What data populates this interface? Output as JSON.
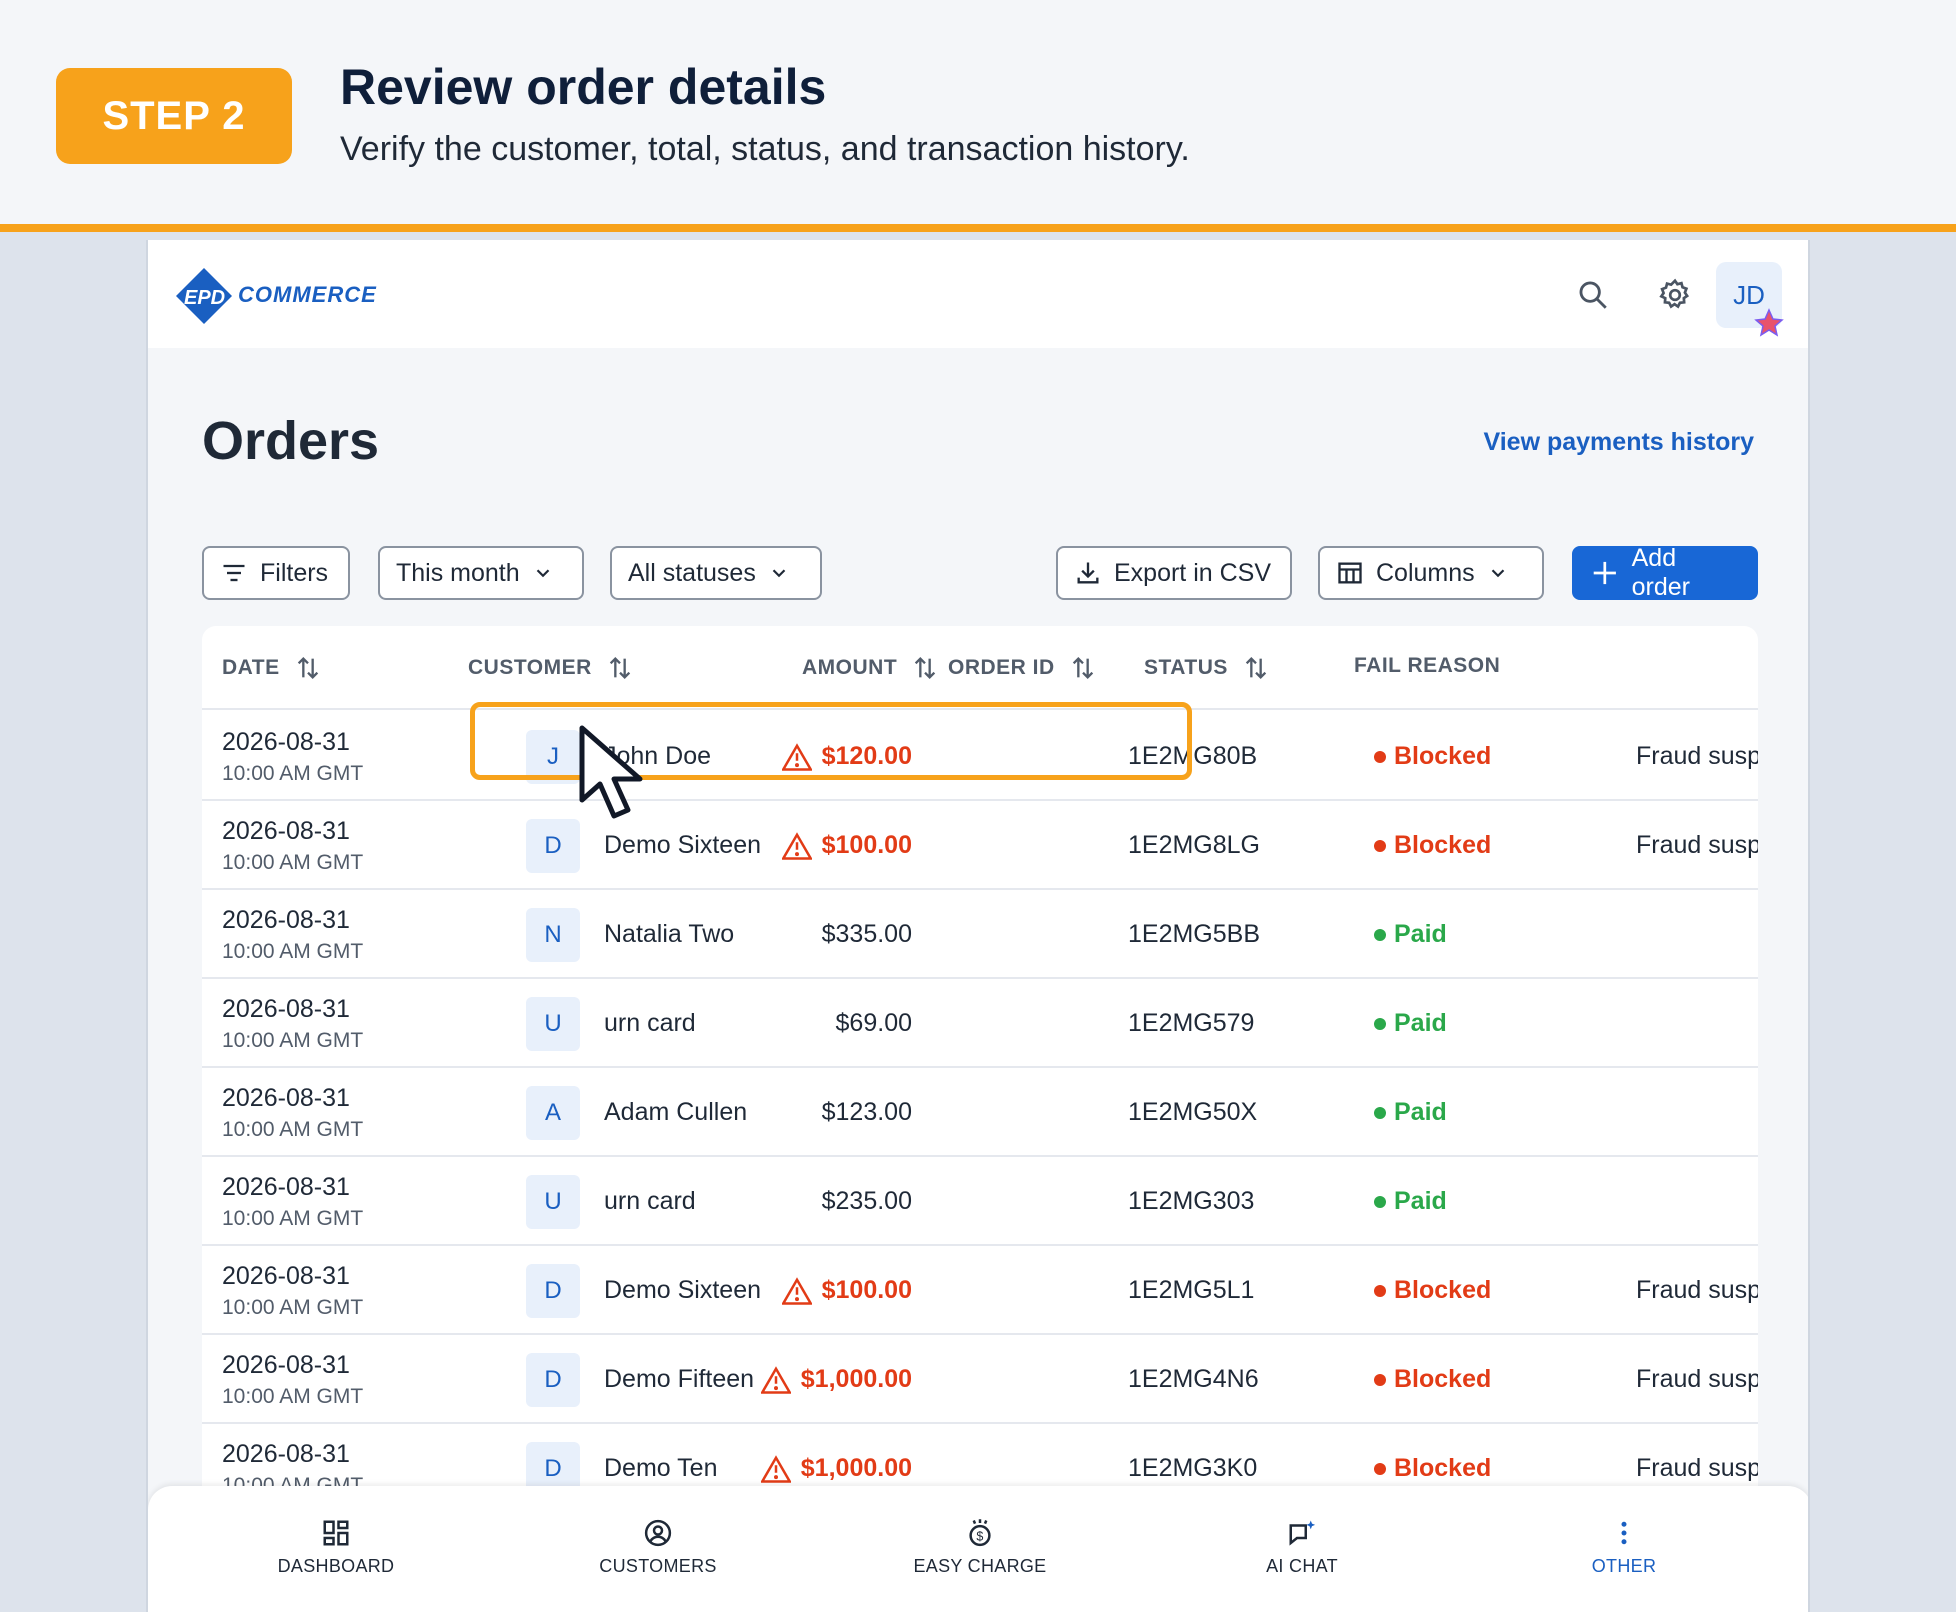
{
  "banner": {
    "step": "STEP 2",
    "title": "Review order details",
    "subtitle": "Verify the customer, total, status, and transaction history."
  },
  "header": {
    "logo_text": "COMMERCE",
    "logo_badge": "EPD",
    "avatar": "JD",
    "icons": [
      "search-icon",
      "gear-icon"
    ]
  },
  "page": {
    "title": "Orders",
    "payments_link": "View payments history"
  },
  "toolbar": {
    "filters": "Filters",
    "period": "This month",
    "statuses": "All statuses",
    "export": "Export in CSV",
    "columns": "Columns",
    "add": "Add order"
  },
  "table": {
    "headers": [
      "DATE",
      "CUSTOMER",
      "AMOUNT",
      "ORDER ID",
      "STATUS",
      "FAIL REASON"
    ],
    "rows": [
      {
        "date": "2026-08-31",
        "time": "10:00 AM GMT",
        "initial": "J",
        "customer": "John Doe",
        "amount": "$120.00",
        "warn": true,
        "order_id": "1E2MG80B",
        "status": "Blocked",
        "reason": "Fraud susp"
      },
      {
        "date": "2026-08-31",
        "time": "10:00 AM GMT",
        "initial": "D",
        "customer": "Demo Sixteen",
        "amount": "$100.00",
        "warn": true,
        "order_id": "1E2MG8LG",
        "status": "Blocked",
        "reason": "Fraud susp"
      },
      {
        "date": "2026-08-31",
        "time": "10:00 AM GMT",
        "initial": "N",
        "customer": "Natalia Two",
        "amount": "$335.00",
        "warn": false,
        "order_id": "1E2MG5BB",
        "status": "Paid",
        "reason": ""
      },
      {
        "date": "2026-08-31",
        "time": "10:00 AM GMT",
        "initial": "U",
        "customer": "urn card",
        "amount": "$69.00",
        "warn": false,
        "order_id": "1E2MG579",
        "status": "Paid",
        "reason": ""
      },
      {
        "date": "2026-08-31",
        "time": "10:00 AM GMT",
        "initial": "A",
        "customer": "Adam Cullen",
        "amount": "$123.00",
        "warn": false,
        "order_id": "1E2MG50X",
        "status": "Paid",
        "reason": ""
      },
      {
        "date": "2026-08-31",
        "time": "10:00 AM GMT",
        "initial": "U",
        "customer": "urn card",
        "amount": "$235.00",
        "warn": false,
        "order_id": "1E2MG303",
        "status": "Paid",
        "reason": ""
      },
      {
        "date": "2026-08-31",
        "time": "10:00 AM GMT",
        "initial": "D",
        "customer": "Demo Sixteen",
        "amount": "$100.00",
        "warn": true,
        "order_id": "1E2MG5L1",
        "status": "Blocked",
        "reason": "Fraud susp"
      },
      {
        "date": "2026-08-31",
        "time": "10:00 AM GMT",
        "initial": "D",
        "customer": "Demo Fifteen",
        "amount": "$1,000.00",
        "warn": true,
        "order_id": "1E2MG4N6",
        "status": "Blocked",
        "reason": "Fraud susp"
      },
      {
        "date": "2026-08-31",
        "time": "10:00 AM GMT",
        "initial": "D",
        "customer": "Demo Ten",
        "amount": "$1,000.00",
        "warn": true,
        "order_id": "1E2MG3K0",
        "status": "Blocked",
        "reason": "Fraud susp"
      }
    ]
  },
  "nav": {
    "items": [
      {
        "label": "DASHBOARD",
        "icon": "dashboard-icon",
        "active": false
      },
      {
        "label": "CUSTOMERS",
        "icon": "user-circle-icon",
        "active": false
      },
      {
        "label": "EASY CHARGE",
        "icon": "dollar-tap-icon",
        "active": false
      },
      {
        "label": "AI CHAT",
        "icon": "chat-sparkle-icon",
        "active": false
      },
      {
        "label": "OTHER",
        "icon": "more-vertical-icon",
        "active": true
      }
    ]
  },
  "colors": {
    "accent": "#f7a21b",
    "primary": "#1867d6",
    "blocked": "#e23b16",
    "paid": "#2aa84a"
  }
}
